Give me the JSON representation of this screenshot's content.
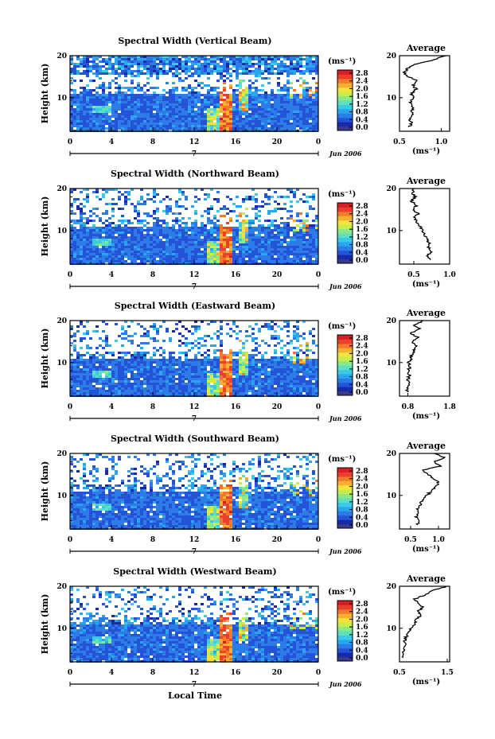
{
  "colors": {
    "colorbar": [
      "#3a3a8c",
      "#1a2aa6",
      "#2453d8",
      "#2d7be6",
      "#2aa6f0",
      "#3cc9e6",
      "#5de0c0",
      "#8ae88a",
      "#c8ec4c",
      "#f2e43a",
      "#f6b030",
      "#f07a2a",
      "#e8402a",
      "#d81e22"
    ]
  },
  "chart_data": [
    {
      "type": "heatmap",
      "title": "Spectral Width (Vertical Beam)",
      "ylabel": "Height (km)",
      "yticks": [
        "20",
        "10"
      ],
      "xticks": [
        "0",
        "4",
        "8",
        "12",
        "16",
        "20",
        "0"
      ],
      "ylim": [
        2,
        20
      ],
      "xlim": [
        0,
        24
      ],
      "colorbar_unit": "(ms⁻¹)",
      "colorbar_ticks": [
        "2.8",
        "2.4",
        "2.0",
        "1.6",
        "1.2",
        "0.8",
        "0.4",
        "0.0"
      ],
      "date_marker": "7",
      "date_label": "Jun 2006",
      "average": {
        "title": "Average",
        "xlabel": "(ms⁻¹)",
        "xticks": [
          "0.5",
          "1.0"
        ],
        "xlim": [
          0.5,
          1.1
        ],
        "height": [
          3,
          4,
          5,
          6,
          7,
          8,
          9,
          10,
          11,
          12,
          13,
          14,
          15,
          16,
          17,
          18,
          19,
          20
        ],
        "width": [
          0.62,
          0.64,
          0.62,
          0.66,
          0.65,
          0.66,
          0.63,
          0.68,
          0.64,
          0.7,
          0.66,
          0.72,
          0.6,
          0.56,
          0.6,
          0.7,
          0.9,
          1.05
        ]
      }
    },
    {
      "type": "heatmap",
      "title": "Spectral Width (Northward Beam)",
      "ylabel": "Height (km)",
      "yticks": [
        "20",
        "10"
      ],
      "xticks": [
        "0",
        "4",
        "8",
        "12",
        "16",
        "20",
        "0"
      ],
      "ylim": [
        2,
        20
      ],
      "xlim": [
        0,
        24
      ],
      "colorbar_unit": "(ms⁻¹)",
      "colorbar_ticks": [
        "2.8",
        "2.4",
        "2.0",
        "1.6",
        "1.2",
        "0.8",
        "0.4",
        "0.0"
      ],
      "date_marker": "7",
      "date_label": "Jun 2006",
      "average": {
        "title": "Average",
        "xlabel": "(ms⁻¹)",
        "xticks": [
          "0.5",
          "1.0"
        ],
        "xlim": [
          0.3,
          1.0
        ],
        "height": [
          3,
          4,
          5,
          6,
          7,
          8,
          9,
          10,
          11,
          12,
          13,
          14,
          15,
          16,
          17,
          18,
          19,
          20
        ],
        "width": [
          0.72,
          0.7,
          0.74,
          0.7,
          0.72,
          0.68,
          0.64,
          0.62,
          0.58,
          0.55,
          0.5,
          0.56,
          0.48,
          0.54,
          0.46,
          0.52,
          0.48,
          0.5
        ]
      }
    },
    {
      "type": "heatmap",
      "title": "Spectral Width (Eastward Beam)",
      "ylabel": "Height (km)",
      "yticks": [
        "20",
        "10"
      ],
      "xticks": [
        "0",
        "4",
        "8",
        "12",
        "16",
        "20",
        "0"
      ],
      "ylim": [
        2,
        20
      ],
      "xlim": [
        0,
        24
      ],
      "colorbar_unit": "(ms⁻¹)",
      "colorbar_ticks": [
        "2.8",
        "2.4",
        "2.0",
        "1.6",
        "1.2",
        "0.8",
        "0.4",
        "0.0"
      ],
      "date_marker": "7",
      "date_label": "Jun 2006",
      "average": {
        "title": "Average",
        "xlabel": "(ms⁻¹)",
        "xticks": [
          "0.8",
          "1.8"
        ],
        "xlim": [
          0.6,
          1.8
        ],
        "height": [
          3,
          4,
          5,
          6,
          7,
          8,
          9,
          10,
          11,
          12,
          13,
          14,
          15,
          16,
          17,
          18,
          19,
          20
        ],
        "width": [
          0.8,
          0.78,
          0.82,
          0.8,
          0.84,
          0.8,
          0.86,
          0.82,
          0.88,
          0.9,
          0.95,
          1.0,
          0.9,
          1.05,
          0.85,
          1.1,
          0.95,
          1.2
        ]
      }
    },
    {
      "type": "heatmap",
      "title": "Spectral Width (Southward Beam)",
      "ylabel": "Height (km)",
      "yticks": [
        "20",
        "10"
      ],
      "xticks": [
        "0",
        "4",
        "8",
        "12",
        "16",
        "20",
        "0"
      ],
      "ylim": [
        2,
        20
      ],
      "xlim": [
        0,
        24
      ],
      "colorbar_unit": "(ms⁻¹)",
      "colorbar_ticks": [
        "2.8",
        "2.4",
        "2.0",
        "1.6",
        "1.2",
        "0.8",
        "0.4",
        "0.0"
      ],
      "date_marker": "7",
      "date_label": "Jun 2006",
      "average": {
        "title": "Average",
        "xlabel": "(ms⁻¹)",
        "xticks": [
          "0.5",
          "1.0"
        ],
        "xlim": [
          0.3,
          1.2
        ],
        "height": [
          3,
          4,
          5,
          6,
          7,
          8,
          9,
          10,
          11,
          12,
          13,
          14,
          15,
          16,
          17,
          18,
          19,
          20
        ],
        "width": [
          0.62,
          0.65,
          0.6,
          0.66,
          0.62,
          0.68,
          0.72,
          0.8,
          0.86,
          0.95,
          1.0,
          0.92,
          0.8,
          0.7,
          1.05,
          0.9,
          1.1,
          0.95
        ]
      }
    },
    {
      "type": "heatmap",
      "title": "Spectral Width (Westward Beam)",
      "ylabel": "Height (km)",
      "yticks": [
        "20",
        "10"
      ],
      "xticks": [
        "0",
        "4",
        "8",
        "12",
        "16",
        "20",
        "0"
      ],
      "ylim": [
        2,
        20
      ],
      "xlim": [
        0,
        24
      ],
      "colorbar_unit": "(ms⁻¹)",
      "colorbar_ticks": [
        "2.8",
        "2.4",
        "2.0",
        "1.6",
        "1.2",
        "0.8",
        "0.4",
        "0.0"
      ],
      "date_marker": "7",
      "date_label": "Jun 2006",
      "xlabel": "Local Time",
      "average": {
        "title": "Average",
        "xlabel": "(ms⁻¹)",
        "xticks": [
          "0.5",
          "1.5"
        ],
        "xlim": [
          0.5,
          1.55
        ],
        "height": [
          3,
          4,
          5,
          6,
          7,
          8,
          9,
          10,
          11,
          12,
          13,
          14,
          15,
          16,
          17,
          18,
          19,
          20
        ],
        "width": [
          0.58,
          0.6,
          0.58,
          0.62,
          0.6,
          0.64,
          0.7,
          0.75,
          0.85,
          0.8,
          0.95,
          0.88,
          1.0,
          0.9,
          0.82,
          1.05,
          1.2,
          1.5
        ]
      }
    }
  ]
}
